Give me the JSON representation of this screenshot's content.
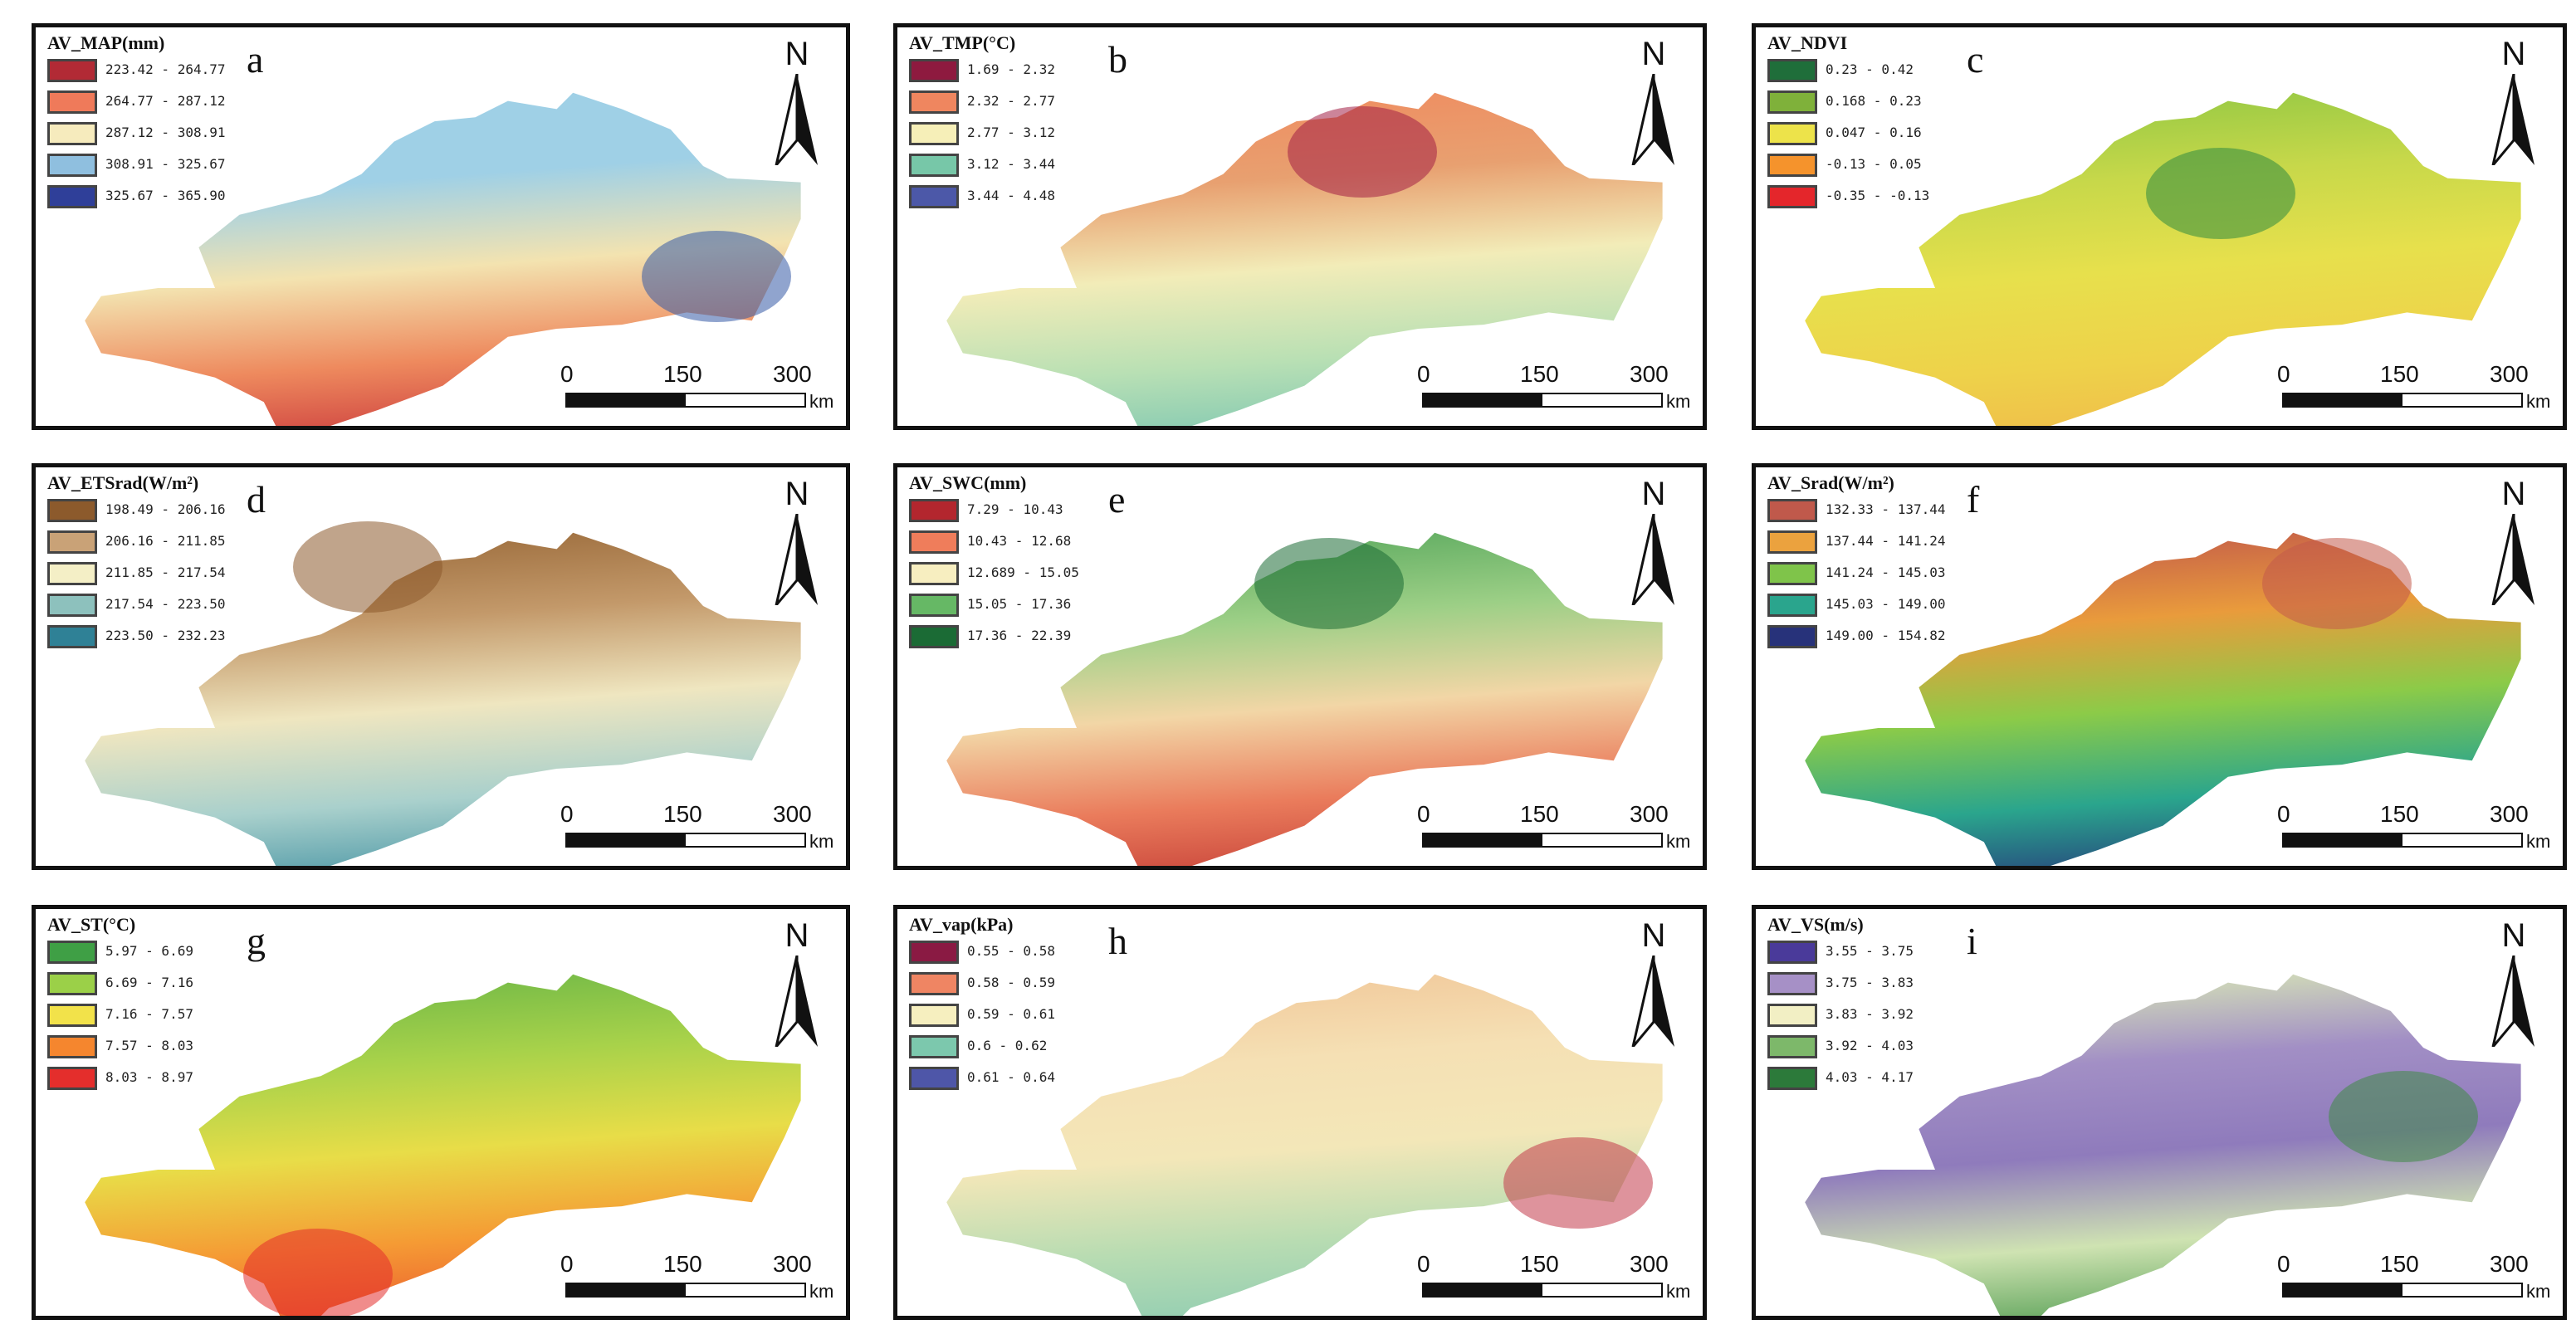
{
  "panels": [
    {
      "letter": "a",
      "title": "AV_MAP(mm)",
      "legend": [
        {
          "label": "223.42 - 264.77",
          "color": "#b22a35"
        },
        {
          "label": "264.77 - 287.12",
          "color": "#ef7a5a"
        },
        {
          "label": "287.12 - 308.91",
          "color": "#f6ebbd"
        },
        {
          "label": "308.91 - 325.67",
          "color": "#8fbfdf"
        },
        {
          "label": "325.67 - 365.90",
          "color": "#2f3f99"
        }
      ],
      "gradient": [
        "#9fd0e6",
        "#9fd0e6",
        "#f3e3b0",
        "#ee8a5e",
        "#c8343a"
      ],
      "accent": "#355aa6"
    },
    {
      "letter": "b",
      "title": "AV_TMP(°C)",
      "legend": [
        {
          "label": "1.69 - 2.32",
          "color": "#8e1a3f"
        },
        {
          "label": "2.32 - 2.77",
          "color": "#ef865f"
        },
        {
          "label": "2.77 - 3.12",
          "color": "#f6efb8"
        },
        {
          "label": "3.12 - 3.44",
          "color": "#77c7a8"
        },
        {
          "label": "3.44 - 4.48",
          "color": "#4c58a8"
        }
      ],
      "gradient": [
        "#ef8c60",
        "#e8a070",
        "#f2ecb8",
        "#b9e0b4",
        "#78c4b2"
      ],
      "accent": "#a31f45"
    },
    {
      "letter": "c",
      "title": "AV_NDVI",
      "legend": [
        {
          "label": "0.23 - 0.42",
          "color": "#1f6e3a"
        },
        {
          "label": "0.168 - 0.23",
          "color": "#7fb13a"
        },
        {
          "label": "0.047 - 0.16",
          "color": "#ede34a"
        },
        {
          "label": "-0.13 - 0.05",
          "color": "#f5932c"
        },
        {
          "label": "-0.35 - -0.13",
          "color": "#e4262b"
        }
      ],
      "gradient": [
        "#93c844",
        "#c7d84a",
        "#e7e04c",
        "#eed24a",
        "#f0b94a"
      ],
      "accent": "#2f8b3f"
    },
    {
      "letter": "d",
      "title": "AV_ETSrad(W/m²)",
      "legend": [
        {
          "label": "198.49 - 206.16",
          "color": "#8c5a2c"
        },
        {
          "label": "206.16 - 211.85",
          "color": "#c9a277"
        },
        {
          "label": "211.85 - 217.54",
          "color": "#f4efc6"
        },
        {
          "label": "217.54 - 223.50",
          "color": "#8dc1bd"
        },
        {
          "label": "223.50 - 232.23",
          "color": "#2f8196"
        }
      ],
      "gradient": [
        "#9a6a3a",
        "#c3996a",
        "#efe6c0",
        "#a9d0cc",
        "#3f8fa0"
      ],
      "accent": "#8c5a2c"
    },
    {
      "letter": "e",
      "title": "AV_SWC(mm)",
      "legend": [
        {
          "label": "7.29 - 10.43",
          "color": "#b3262e"
        },
        {
          "label": "10.43 - 12.68",
          "color": "#ef7d5b"
        },
        {
          "label": "12.689 - 15.05",
          "color": "#f7eec0"
        },
        {
          "label": "15.05 - 17.36",
          "color": "#66b865"
        },
        {
          "label": "17.36 - 22.39",
          "color": "#1b6b35"
        }
      ],
      "gradient": [
        "#5aa95e",
        "#9ccf86",
        "#f2d6a6",
        "#ea7c5c",
        "#c23a34"
      ],
      "accent": "#1b6b35"
    },
    {
      "letter": "f",
      "title": "AV_Srad(W/m²)",
      "legend": [
        {
          "label": "132.33 - 137.44",
          "color": "#c0594b"
        },
        {
          "label": "137.44 - 141.24",
          "color": "#eba23e"
        },
        {
          "label": "141.24 - 145.03",
          "color": "#7fc44a"
        },
        {
          "label": "145.03 - 149.00",
          "color": "#2aa58d"
        },
        {
          "label": "149.00 - 154.82",
          "color": "#27327a"
        }
      ],
      "gradient": [
        "#c25a4a",
        "#e99b3c",
        "#8ccb48",
        "#2aa58d",
        "#26317a"
      ],
      "accent": "#c25a4a"
    },
    {
      "letter": "g",
      "title": "AV_ST(°C)",
      "legend": [
        {
          "label": "5.97 - 6.69",
          "color": "#3f9f45"
        },
        {
          "label": "6.69 - 7.16",
          "color": "#9bd048"
        },
        {
          "label": "7.16 - 7.57",
          "color": "#f2e24a"
        },
        {
          "label": "7.57 - 8.03",
          "color": "#f5862e"
        },
        {
          "label": "8.03 - 8.97",
          "color": "#e42e2c"
        }
      ],
      "gradient": [
        "#6fb847",
        "#a8d24a",
        "#e8dd48",
        "#f59a34",
        "#e9532f"
      ],
      "accent": "#e42e2c"
    },
    {
      "letter": "h",
      "title": "AV_vap(kPa)",
      "legend": [
        {
          "label": "0.55 - 0.58",
          "color": "#8a1a43"
        },
        {
          "label": "0.58 - 0.59",
          "color": "#ef8563"
        },
        {
          "label": "0.59 - 0.61",
          "color": "#f6efbf"
        },
        {
          "label": "0.6 - 0.62",
          "color": "#7cc8ad"
        },
        {
          "label": "0.61 - 0.64",
          "color": "#4e56a8"
        }
      ],
      "gradient": [
        "#f1c89a",
        "#f5e0b4",
        "#f3e7b8",
        "#b8dcb2",
        "#8ccbb2"
      ],
      "accent": "#c23a4a"
    },
    {
      "letter": "i",
      "title": "AV_VS(m/s)",
      "legend": [
        {
          "label": "3.55 - 3.75",
          "color": "#4a3a9a"
        },
        {
          "label": "3.75 - 3.83",
          "color": "#a690c6"
        },
        {
          "label": "3.83 - 3.92",
          "color": "#f2efc4"
        },
        {
          "label": "3.92 - 4.03",
          "color": "#7db86a"
        },
        {
          "label": "4.03 - 4.17",
          "color": "#2c7a3a"
        }
      ],
      "gradient": [
        "#d9e8b6",
        "#a28fc5",
        "#8f7bbc",
        "#cfe3b2",
        "#4d9a4e"
      ],
      "accent": "#3f8a45"
    }
  ],
  "north_label": "N",
  "scale": {
    "ticks": [
      "0",
      "150",
      "300"
    ],
    "unit": "km"
  }
}
